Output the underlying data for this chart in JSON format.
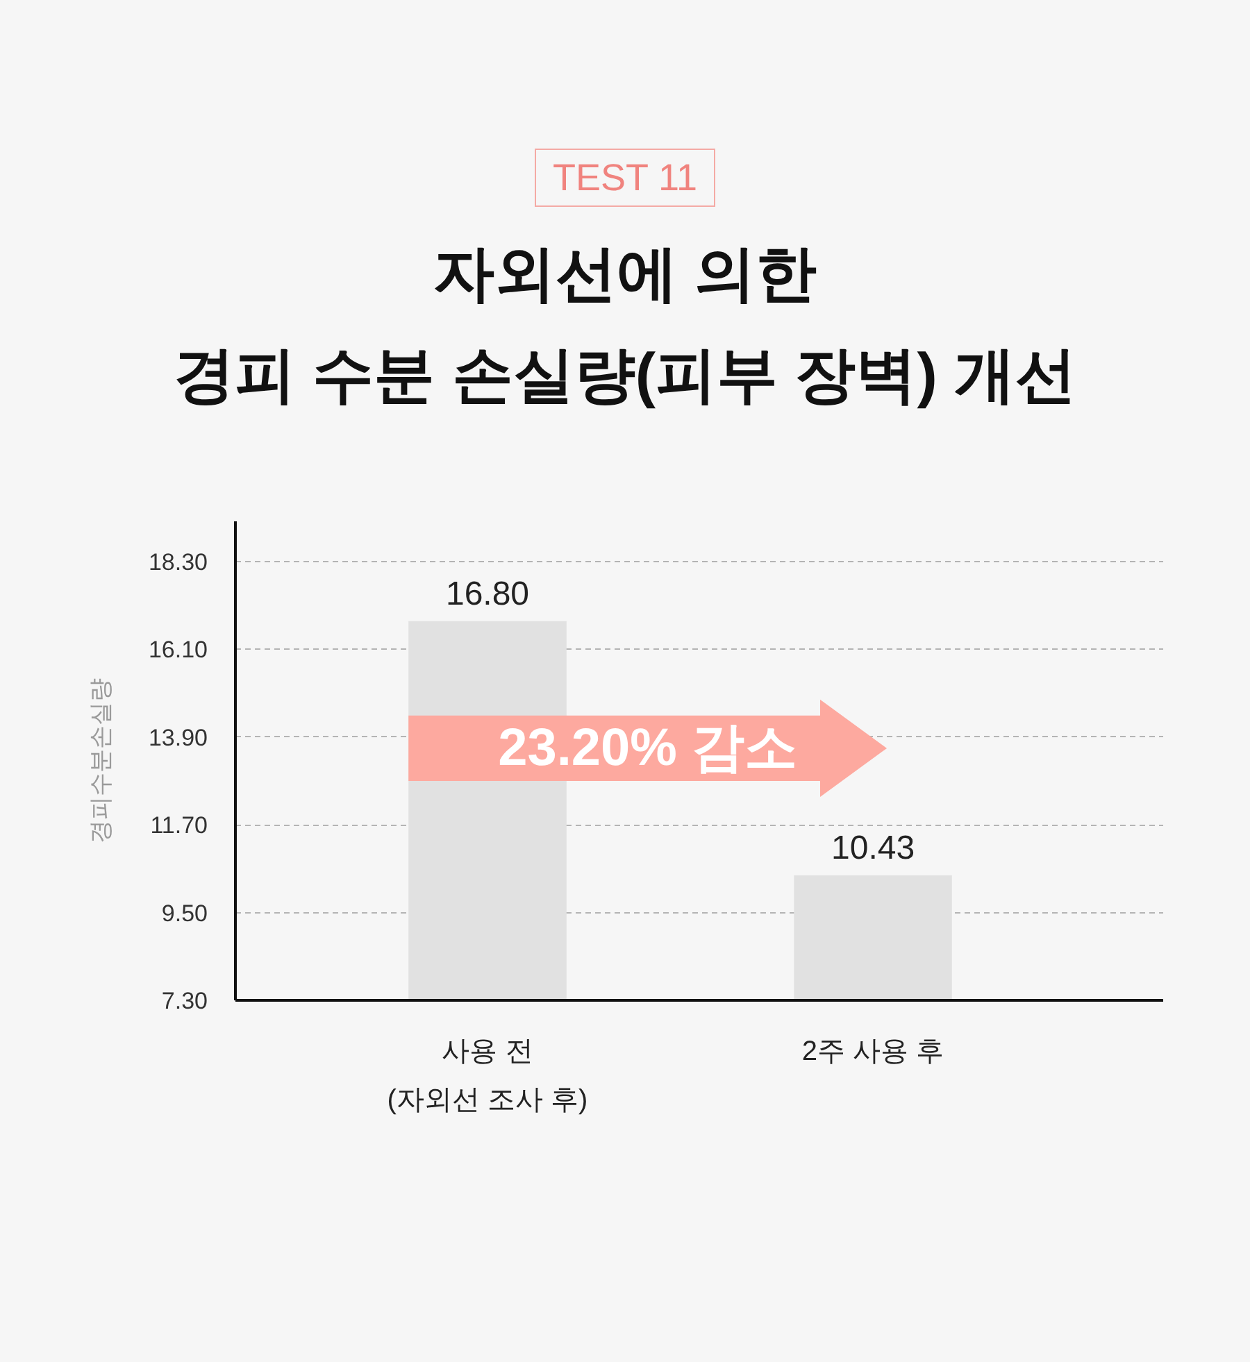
{
  "chart_data": {
    "type": "bar",
    "subtitle": "TEST 11",
    "title": "자외선에 의한\n경피 수분 손실량(피부 장벽) 개선",
    "ylabel": "경피수분손실량",
    "categories": [
      "사용 전\n(자외선 조사 후)",
      "2주 사용 후"
    ],
    "values": [
      16.8,
      10.43
    ],
    "value_labels": [
      "16.80",
      "10.43"
    ],
    "color": "#e1e1e1",
    "ylim": [
      7.3,
      19.3
    ],
    "yticks": [
      {
        "value": 7.3,
        "label": "7.30"
      },
      {
        "value": 9.5,
        "label": "9.50"
      },
      {
        "value": 11.7,
        "label": "11.70"
      },
      {
        "value": 13.9,
        "label": "13.90"
      },
      {
        "value": 16.1,
        "label": "16.10"
      },
      {
        "value": 18.3,
        "label": "18.30"
      }
    ],
    "grid": "y",
    "annotations": [
      "23.20% 감소"
    ]
  }
}
